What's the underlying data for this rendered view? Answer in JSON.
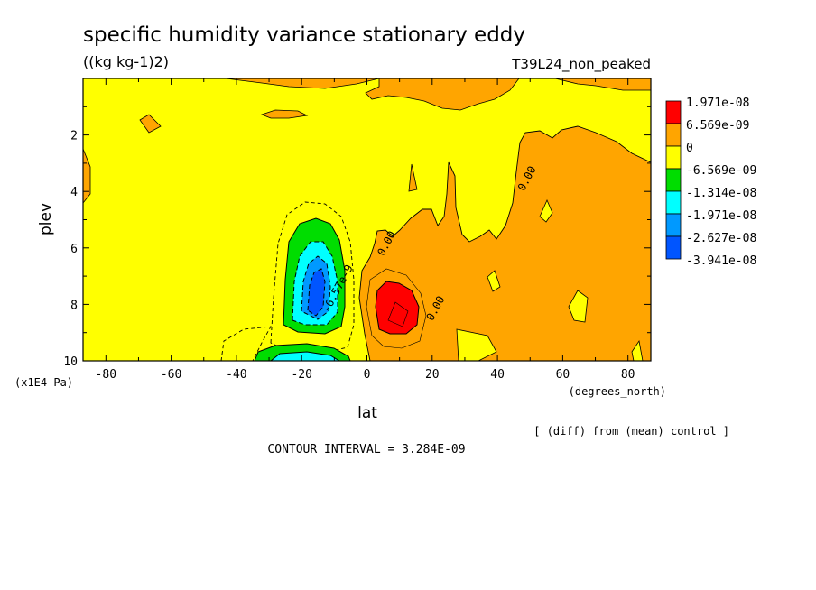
{
  "chart_data": {
    "type": "heatmap",
    "title": "specific humidity variance stationary eddy",
    "units": "((kg kg-1)2)",
    "run_label": "T39L24_non_peaked",
    "xlabel": "lat",
    "x_unit_label": "(degrees_north)",
    "ylabel": "plev",
    "y_unit_label": "(x1E4 Pa)",
    "xlim": [
      -87,
      87
    ],
    "ylim": [
      0,
      10
    ],
    "x_ticks": [
      -80,
      -60,
      -40,
      -20,
      0,
      20,
      40,
      60,
      80
    ],
    "y_ticks": [
      2,
      4,
      6,
      8,
      10
    ],
    "y_inverted": true,
    "legend_placement": "right",
    "legend_levels": [
      {
        "label": "1.971e-08",
        "color": "#ff0000"
      },
      {
        "label": "6.569e-09",
        "color": "#ffa500"
      },
      {
        "label": "0",
        "color": "#ffff00"
      },
      {
        "label": "-6.569e-09",
        "color": "#00dd00"
      },
      {
        "label": "-1.314e-08",
        "color": "#00ffff"
      },
      {
        "label": "-1.971e-08",
        "color": "#0099ff"
      },
      {
        "label": "-2.627e-08",
        "color": "#0055ff"
      },
      {
        "label": "-3.941e-08",
        "color": null
      }
    ],
    "contour_labels": [
      {
        "text": "0.00",
        "lat": 7,
        "plev": 5.9
      },
      {
        "text": "0.00",
        "lat": 22,
        "plev": 8.2
      },
      {
        "text": "0.00",
        "lat": 50,
        "plev": 3.6
      },
      {
        "text": "-6.57e-9",
        "lat": -8,
        "plev": 7.5
      }
    ],
    "regions": [
      {
        "name": "negative minimum",
        "lat": -16,
        "plev": 7.7,
        "sign": "negative",
        "approx_value": -3.4e-08
      },
      {
        "name": "positive maximum",
        "lat": 10,
        "plev": 8.3,
        "sign": "positive",
        "approx_value": 2.3e-08
      },
      {
        "name": "positive band NH",
        "lat_range": [
          20,
          87
        ],
        "plev_range": [
          1.5,
          10
        ],
        "sign": "positive",
        "approx_value": 5e-09
      }
    ],
    "contour_interval_text": "CONTOUR INTERVAL = 3.284E-09",
    "comparison_note": "[ (diff) from (mean) control ]"
  }
}
